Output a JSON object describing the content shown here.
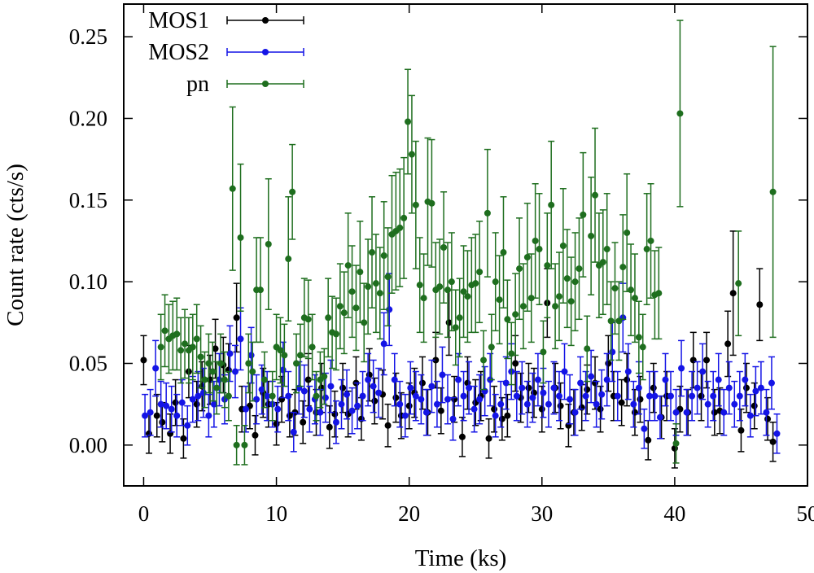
{
  "chart_data": {
    "type": "scatter",
    "title": "",
    "xlabel": "Time (ks)",
    "ylabel": "Count rate (cts/s)",
    "xlim": [
      -1.5,
      50
    ],
    "ylim": [
      -0.025,
      0.27
    ],
    "xticks": [
      0,
      10,
      20,
      30,
      40,
      50
    ],
    "xtick_labels": [
      "0",
      "10",
      "20",
      "30",
      "40",
      "50"
    ],
    "yticks": [
      0.0,
      0.05,
      0.1,
      0.15,
      0.2,
      0.25
    ],
    "ytick_labels": [
      "0.00",
      "0.05",
      "0.10",
      "0.15",
      "0.20",
      "0.25"
    ],
    "legend_position": "top-left",
    "x_error": 0.1,
    "series": [
      {
        "name": "MOS1",
        "color": "#000000",
        "x": [
          0.0,
          0.4,
          1.0,
          1.4,
          2.0,
          2.4,
          3.0,
          3.4,
          4.0,
          4.4,
          5.0,
          5.4,
          6.0,
          6.4,
          7.0,
          7.4,
          8.0,
          8.4,
          9.0,
          9.4,
          10.0,
          10.4,
          11.0,
          11.4,
          12.0,
          12.4,
          13.0,
          13.4,
          14.0,
          14.4,
          15.0,
          15.4,
          16.0,
          16.4,
          17.0,
          17.4,
          18.0,
          18.4,
          19.0,
          19.4,
          20.0,
          20.4,
          21.0,
          21.4,
          22.0,
          22.4,
          23.0,
          23.4,
          24.0,
          24.4,
          25.0,
          25.4,
          26.0,
          26.4,
          27.0,
          27.4,
          28.0,
          28.4,
          29.0,
          29.4,
          30.0,
          30.4,
          31.0,
          31.4,
          32.0,
          32.4,
          33.0,
          33.4,
          34.0,
          34.4,
          35.0,
          35.4,
          36.0,
          36.4,
          37.0,
          37.4,
          38.0,
          38.4,
          39.0,
          39.4,
          40.0,
          40.4,
          41.0,
          41.4,
          42.0,
          42.4,
          43.0,
          43.4,
          44.0,
          44.4,
          45.0,
          45.4,
          46.0,
          46.4,
          47.0,
          47.4
        ],
        "y": [
          0.052,
          0.007,
          0.018,
          0.014,
          0.007,
          0.026,
          0.004,
          0.045,
          0.025,
          0.036,
          0.04,
          0.059,
          0.049,
          0.046,
          0.078,
          0.022,
          0.024,
          0.006,
          0.032,
          0.025,
          0.013,
          0.028,
          0.018,
          0.02,
          0.014,
          0.04,
          0.02,
          0.035,
          0.011,
          0.019,
          0.035,
          0.019,
          0.038,
          0.016,
          0.043,
          0.027,
          0.031,
          0.012,
          0.029,
          0.018,
          0.024,
          0.032,
          0.038,
          0.02,
          0.052,
          0.021,
          0.075,
          0.028,
          0.005,
          0.038,
          0.026,
          0.03,
          0.004,
          0.022,
          0.016,
          0.018,
          0.05,
          0.029,
          0.035,
          0.032,
          0.022,
          0.087,
          0.035,
          0.024,
          0.012,
          0.02,
          0.023,
          0.034,
          0.038,
          0.022,
          0.05,
          0.03,
          0.026,
          0.04,
          0.02,
          0.028,
          0.003,
          0.035,
          0.017,
          0.03,
          -0.002,
          0.022,
          0.02,
          0.052,
          0.03,
          0.052,
          0.02,
          0.021,
          0.062,
          0.093,
          0.009,
          0.035,
          0.024,
          0.086,
          0.016,
          0.002
        ],
        "yerr": [
          0.015,
          0.012,
          0.013,
          0.012,
          0.012,
          0.014,
          0.012,
          0.016,
          0.014,
          0.015,
          0.015,
          0.018,
          0.017,
          0.016,
          0.021,
          0.014,
          0.014,
          0.012,
          0.015,
          0.014,
          0.013,
          0.014,
          0.013,
          0.014,
          0.013,
          0.016,
          0.014,
          0.015,
          0.013,
          0.014,
          0.015,
          0.014,
          0.016,
          0.013,
          0.016,
          0.014,
          0.015,
          0.013,
          0.015,
          0.014,
          0.014,
          0.015,
          0.016,
          0.014,
          0.017,
          0.014,
          0.02,
          0.014,
          0.012,
          0.016,
          0.014,
          0.015,
          0.012,
          0.014,
          0.013,
          0.013,
          0.017,
          0.015,
          0.015,
          0.015,
          0.014,
          0.021,
          0.015,
          0.014,
          0.013,
          0.014,
          0.014,
          0.015,
          0.016,
          0.014,
          0.017,
          0.015,
          0.014,
          0.016,
          0.014,
          0.014,
          0.012,
          0.015,
          0.013,
          0.015,
          0.012,
          0.014,
          0.014,
          0.017,
          0.015,
          0.017,
          0.014,
          0.014,
          0.02,
          0.038,
          0.013,
          0.015,
          0.014,
          0.022,
          0.013,
          0.012
        ]
      },
      {
        "name": "MOS2",
        "color": "#1414e6",
        "x": [
          0.1,
          0.5,
          0.9,
          1.3,
          1.7,
          2.1,
          2.5,
          2.9,
          3.3,
          3.7,
          4.1,
          4.5,
          4.9,
          5.3,
          5.7,
          6.1,
          6.5,
          6.9,
          7.3,
          7.7,
          8.1,
          8.5,
          8.9,
          9.3,
          9.7,
          10.1,
          10.5,
          10.9,
          11.3,
          11.7,
          12.1,
          12.5,
          12.9,
          13.3,
          13.7,
          14.1,
          14.5,
          14.9,
          15.3,
          15.7,
          16.1,
          16.5,
          16.9,
          17.3,
          17.7,
          18.1,
          18.5,
          18.9,
          19.3,
          19.7,
          20.1,
          20.5,
          20.9,
          21.3,
          21.7,
          22.1,
          22.5,
          22.9,
          23.3,
          23.7,
          24.1,
          24.5,
          24.9,
          25.3,
          25.7,
          26.1,
          26.5,
          26.9,
          27.3,
          27.7,
          28.1,
          28.5,
          28.9,
          29.3,
          29.7,
          30.1,
          30.5,
          30.9,
          31.3,
          31.7,
          32.1,
          32.5,
          32.9,
          33.3,
          33.7,
          34.1,
          34.5,
          34.9,
          35.3,
          35.7,
          36.1,
          36.5,
          36.9,
          37.3,
          37.7,
          38.1,
          38.5,
          38.9,
          39.3,
          39.7,
          40.1,
          40.5,
          40.9,
          41.3,
          41.7,
          42.1,
          42.5,
          42.9,
          43.3,
          43.7,
          44.1,
          44.5,
          44.9,
          45.3,
          45.7,
          46.1,
          46.5,
          46.9,
          47.3,
          47.7
        ],
        "y": [
          0.018,
          0.02,
          0.047,
          0.025,
          0.024,
          0.022,
          0.018,
          0.026,
          0.012,
          0.028,
          0.03,
          0.032,
          0.018,
          0.025,
          0.04,
          0.028,
          0.056,
          0.045,
          0.065,
          0.022,
          0.055,
          0.028,
          0.034,
          0.03,
          0.025,
          0.022,
          0.046,
          0.03,
          0.008,
          0.035,
          0.033,
          0.022,
          0.028,
          0.02,
          0.029,
          0.036,
          0.014,
          0.025,
          0.031,
          0.021,
          0.024,
          0.03,
          0.04,
          0.036,
          0.032,
          0.062,
          0.083,
          0.04,
          0.025,
          0.018,
          0.035,
          0.03,
          0.028,
          0.02,
          0.036,
          0.025,
          0.043,
          0.028,
          0.016,
          0.04,
          0.03,
          0.035,
          0.022,
          0.028,
          0.033,
          0.04,
          0.018,
          0.025,
          0.038,
          0.045,
          0.03,
          0.035,
          0.025,
          0.029,
          0.04,
          0.032,
          0.025,
          0.035,
          0.03,
          0.045,
          0.028,
          0.02,
          0.038,
          0.03,
          0.042,
          0.025,
          0.031,
          0.04,
          0.057,
          0.03,
          0.078,
          0.045,
          0.025,
          0.035,
          0.01,
          0.03,
          0.03,
          0.017,
          0.04,
          0.03,
          0.02,
          0.047,
          0.02,
          0.03,
          0.035,
          0.045,
          0.025,
          0.03,
          0.04,
          0.02,
          0.035,
          0.025,
          0.03,
          0.04,
          0.018,
          0.033,
          0.035,
          0.02,
          0.038,
          0.007
        ],
        "yerr": [
          0.013,
          0.014,
          0.017,
          0.014,
          0.014,
          0.014,
          0.013,
          0.014,
          0.012,
          0.014,
          0.015,
          0.015,
          0.013,
          0.014,
          0.016,
          0.015,
          0.017,
          0.016,
          0.019,
          0.014,
          0.017,
          0.015,
          0.015,
          0.015,
          0.014,
          0.014,
          0.017,
          0.015,
          0.012,
          0.016,
          0.016,
          0.014,
          0.015,
          0.014,
          0.015,
          0.016,
          0.013,
          0.015,
          0.015,
          0.014,
          0.014,
          0.015,
          0.016,
          0.016,
          0.015,
          0.019,
          0.022,
          0.016,
          0.014,
          0.013,
          0.016,
          0.015,
          0.015,
          0.014,
          0.016,
          0.014,
          0.017,
          0.015,
          0.013,
          0.016,
          0.015,
          0.016,
          0.014,
          0.015,
          0.015,
          0.016,
          0.013,
          0.014,
          0.016,
          0.017,
          0.015,
          0.016,
          0.014,
          0.015,
          0.016,
          0.015,
          0.014,
          0.016,
          0.015,
          0.017,
          0.015,
          0.014,
          0.016,
          0.015,
          0.016,
          0.014,
          0.015,
          0.016,
          0.018,
          0.015,
          0.021,
          0.017,
          0.014,
          0.016,
          0.012,
          0.015,
          0.015,
          0.013,
          0.016,
          0.015,
          0.014,
          0.017,
          0.014,
          0.015,
          0.016,
          0.017,
          0.014,
          0.015,
          0.016,
          0.014,
          0.016,
          0.014,
          0.015,
          0.016,
          0.013,
          0.015,
          0.016,
          0.014,
          0.016,
          0.012
        ]
      },
      {
        "name": "pn",
        "color": "#1e6e1e",
        "x": [
          1.3,
          1.6,
          1.9,
          2.2,
          2.5,
          2.8,
          3.1,
          3.4,
          3.7,
          4.0,
          4.3,
          4.6,
          4.9,
          5.2,
          5.5,
          5.8,
          6.1,
          6.4,
          6.7,
          7.0,
          7.3,
          7.6,
          7.9,
          8.2,
          8.5,
          8.8,
          9.1,
          9.4,
          9.7,
          10.0,
          10.3,
          10.6,
          10.9,
          11.2,
          11.5,
          11.8,
          12.1,
          12.4,
          12.7,
          13.0,
          13.3,
          13.6,
          13.9,
          14.2,
          14.5,
          14.8,
          15.1,
          15.4,
          15.7,
          16.0,
          16.3,
          16.6,
          16.9,
          17.2,
          17.5,
          17.8,
          18.1,
          18.4,
          18.7,
          19.0,
          19.3,
          19.6,
          19.9,
          20.2,
          20.5,
          20.8,
          21.1,
          21.4,
          21.7,
          22.0,
          22.3,
          22.6,
          22.9,
          23.2,
          23.5,
          23.8,
          24.1,
          24.4,
          24.7,
          25.0,
          25.3,
          25.6,
          25.9,
          26.2,
          26.5,
          26.8,
          27.1,
          27.4,
          27.7,
          28.0,
          28.3,
          28.6,
          28.9,
          29.2,
          29.5,
          29.8,
          30.1,
          30.4,
          30.7,
          31.0,
          31.3,
          31.6,
          31.9,
          32.2,
          32.5,
          32.8,
          33.1,
          33.4,
          33.7,
          34.0,
          34.3,
          34.6,
          34.9,
          35.2,
          35.5,
          35.8,
          36.1,
          36.4,
          36.7,
          37.0,
          37.3,
          37.6,
          37.9,
          38.2,
          38.5,
          38.8,
          40.1,
          40.4,
          44.8,
          47.4
        ],
        "y": [
          0.06,
          0.07,
          0.065,
          0.067,
          0.068,
          0.058,
          0.062,
          0.058,
          0.06,
          0.065,
          0.054,
          0.04,
          0.05,
          0.045,
          0.035,
          0.05,
          0.04,
          0.03,
          0.157,
          0.0,
          0.127,
          0.0,
          0.05,
          0.045,
          0.095,
          0.095,
          0.04,
          0.123,
          0.03,
          0.06,
          0.058,
          0.055,
          0.114,
          0.155,
          0.05,
          0.055,
          0.078,
          0.077,
          0.06,
          0.03,
          0.04,
          0.042,
          0.078,
          0.069,
          0.068,
          0.085,
          0.081,
          0.11,
          0.094,
          0.084,
          0.106,
          0.075,
          0.097,
          0.118,
          0.099,
          0.093,
          0.116,
          0.103,
          0.129,
          0.131,
          0.133,
          0.139,
          0.198,
          0.178,
          0.147,
          0.098,
          0.09,
          0.149,
          0.148,
          0.095,
          0.097,
          0.121,
          0.095,
          0.1,
          0.072,
          0.078,
          0.094,
          0.091,
          0.098,
          0.099,
          0.106,
          0.052,
          0.142,
          0.06,
          0.1,
          0.089,
          0.118,
          0.077,
          0.056,
          0.08,
          0.108,
          0.085,
          0.115,
          0.09,
          0.125,
          0.12,
          0.057,
          0.11,
          0.147,
          0.085,
          0.091,
          0.122,
          0.102,
          0.088,
          0.1,
          0.108,
          0.141,
          0.059,
          0.128,
          0.153,
          0.11,
          0.112,
          0.12,
          0.076,
          0.096,
          0.076,
          0.109,
          0.13,
          0.095,
          0.09,
          0.066,
          0.06,
          0.12,
          0.125,
          0.092,
          0.093,
          0.001,
          0.203,
          0.099,
          0.155
        ],
        "yerr": [
          0.02,
          0.022,
          0.021,
          0.021,
          0.022,
          0.02,
          0.021,
          0.02,
          0.02,
          0.021,
          0.019,
          0.017,
          0.018,
          0.018,
          0.016,
          0.018,
          0.017,
          0.015,
          0.05,
          0.012,
          0.045,
          0.012,
          0.018,
          0.018,
          0.032,
          0.032,
          0.017,
          0.04,
          0.015,
          0.02,
          0.02,
          0.019,
          0.038,
          0.029,
          0.018,
          0.019,
          0.024,
          0.024,
          0.02,
          0.015,
          0.017,
          0.017,
          0.024,
          0.022,
          0.022,
          0.026,
          0.025,
          0.032,
          0.028,
          0.026,
          0.031,
          0.024,
          0.029,
          0.034,
          0.03,
          0.028,
          0.033,
          0.03,
          0.036,
          0.036,
          0.036,
          0.037,
          0.032,
          0.036,
          0.039,
          0.029,
          0.027,
          0.039,
          0.039,
          0.029,
          0.029,
          0.034,
          0.029,
          0.03,
          0.023,
          0.024,
          0.028,
          0.028,
          0.029,
          0.03,
          0.031,
          0.018,
          0.039,
          0.02,
          0.03,
          0.027,
          0.034,
          0.024,
          0.019,
          0.025,
          0.031,
          0.026,
          0.033,
          0.027,
          0.035,
          0.034,
          0.019,
          0.032,
          0.039,
          0.026,
          0.027,
          0.035,
          0.03,
          0.027,
          0.03,
          0.031,
          0.038,
          0.02,
          0.036,
          0.041,
          0.032,
          0.032,
          0.034,
          0.024,
          0.028,
          0.024,
          0.032,
          0.036,
          0.028,
          0.027,
          0.022,
          0.02,
          0.034,
          0.035,
          0.027,
          0.028,
          0.012,
          0.057,
          0.032,
          0.089
        ]
      }
    ]
  }
}
